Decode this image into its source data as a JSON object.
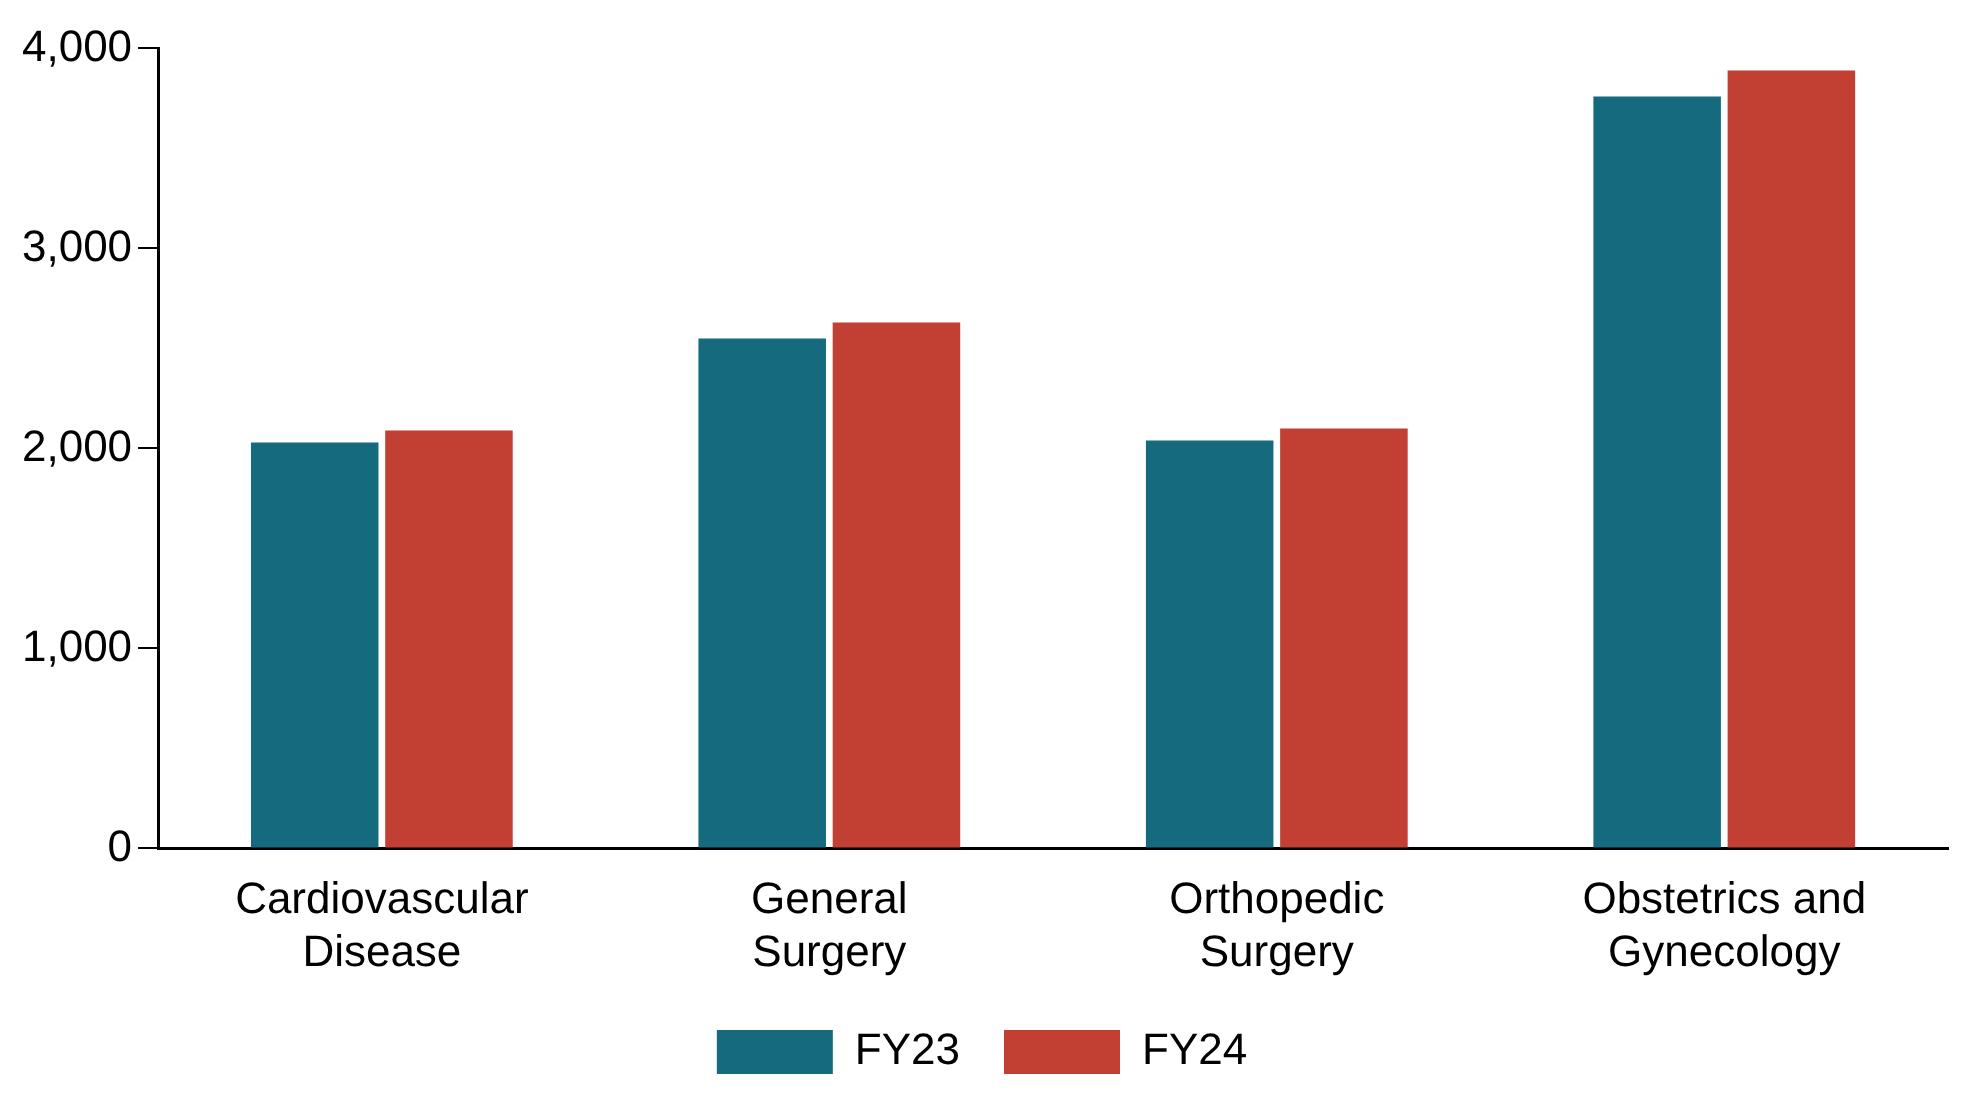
{
  "chart_data": {
    "type": "bar",
    "categories": [
      [
        "Cardiovascular",
        "Disease"
      ],
      [
        "General",
        "Surgery"
      ],
      [
        "Orthopedic",
        "Surgery"
      ],
      [
        "Obstetrics and",
        "Gynecology"
      ]
    ],
    "series": [
      {
        "name": "FY23",
        "color": "#156a7d",
        "values": [
          2030,
          2550,
          2040,
          3760
        ]
      },
      {
        "name": "FY24",
        "color": "#c13f33",
        "values": [
          2090,
          2630,
          2100,
          3890
        ]
      }
    ],
    "ylim": [
      0,
      4000
    ],
    "yticks": [
      {
        "value": 0,
        "label": "0"
      },
      {
        "value": 1000,
        "label": "1,000"
      },
      {
        "value": 2000,
        "label": "2,000"
      },
      {
        "value": 3000,
        "label": "3,000"
      },
      {
        "value": 4000,
        "label": "4,000"
      }
    ],
    "grid": false,
    "legend": "bottom"
  }
}
